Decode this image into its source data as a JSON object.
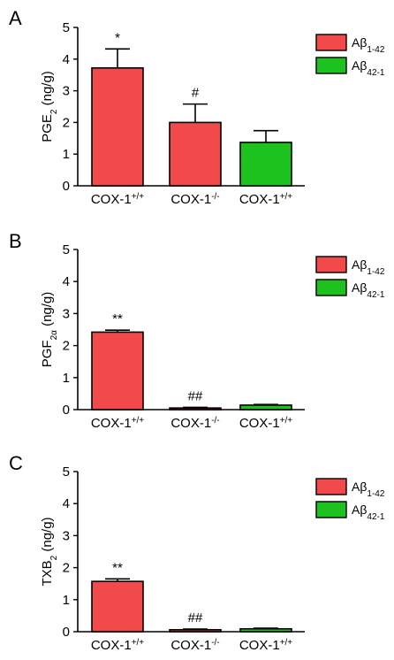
{
  "figure": {
    "legend": [
      {
        "key": "a142",
        "main": "Aβ",
        "sub": "1-42",
        "color": "#f24a4a"
      },
      {
        "key": "a421",
        "main": "Aβ",
        "sub": "42-1",
        "color": "#1ec21e"
      }
    ]
  },
  "chart_data": [
    {
      "type": "bar",
      "panel_label": "A",
      "ylabel": {
        "main": "PGE",
        "sub": "2",
        "unit": " (ng/g)"
      },
      "ylim": [
        0,
        5
      ],
      "yticks": [
        "0",
        "1",
        "2",
        "3",
        "4",
        "5"
      ],
      "categories": [
        {
          "base": "COX-1",
          "sup": "+/+"
        },
        {
          "base": "COX-1",
          "sup": "-/-"
        },
        {
          "base": "COX-1",
          "sup": "+/+"
        }
      ],
      "bars": [
        {
          "value": 3.72,
          "error": 0.6,
          "series": "a142",
          "annotation": "*"
        },
        {
          "value": 2.0,
          "error": 0.58,
          "series": "a142",
          "annotation": "#"
        },
        {
          "value": 1.37,
          "error": 0.37,
          "series": "a421",
          "annotation": ""
        }
      ],
      "grid": false,
      "legend_position": "top-right"
    },
    {
      "type": "bar",
      "panel_label": "B",
      "ylabel": {
        "main": "PGF",
        "sub": "2α",
        "unit": " (ng/g)"
      },
      "ylim": [
        0,
        5
      ],
      "yticks": [
        "0",
        "1",
        "2",
        "3",
        "4",
        "5"
      ],
      "categories": [
        {
          "base": "COX-1",
          "sup": "+/+"
        },
        {
          "base": "COX-1",
          "sup": "-/-"
        },
        {
          "base": "COX-1",
          "sup": "+/+"
        }
      ],
      "bars": [
        {
          "value": 2.42,
          "error": 0.06,
          "series": "a142",
          "annotation": "**"
        },
        {
          "value": 0.05,
          "error": 0.02,
          "series": "a142",
          "annotation": "##"
        },
        {
          "value": 0.14,
          "error": 0.02,
          "series": "a421",
          "annotation": ""
        }
      ],
      "grid": false,
      "legend_position": "top-right"
    },
    {
      "type": "bar",
      "panel_label": "C",
      "ylabel": {
        "main": "TXB",
        "sub": "2",
        "unit": " (ng/g)"
      },
      "ylim": [
        0,
        5
      ],
      "yticks": [
        "0",
        "1",
        "2",
        "3",
        "4",
        "5"
      ],
      "categories": [
        {
          "base": "COX-1",
          "sup": "+/+"
        },
        {
          "base": "COX-1",
          "sup": "-/-"
        },
        {
          "base": "COX-1",
          "sup": "+/+"
        }
      ],
      "bars": [
        {
          "value": 1.57,
          "error": 0.08,
          "series": "a142",
          "annotation": "**"
        },
        {
          "value": 0.06,
          "error": 0.02,
          "series": "a142",
          "annotation": "##"
        },
        {
          "value": 0.09,
          "error": 0.02,
          "series": "a421",
          "annotation": ""
        }
      ],
      "grid": false,
      "legend_position": "top-right"
    }
  ]
}
